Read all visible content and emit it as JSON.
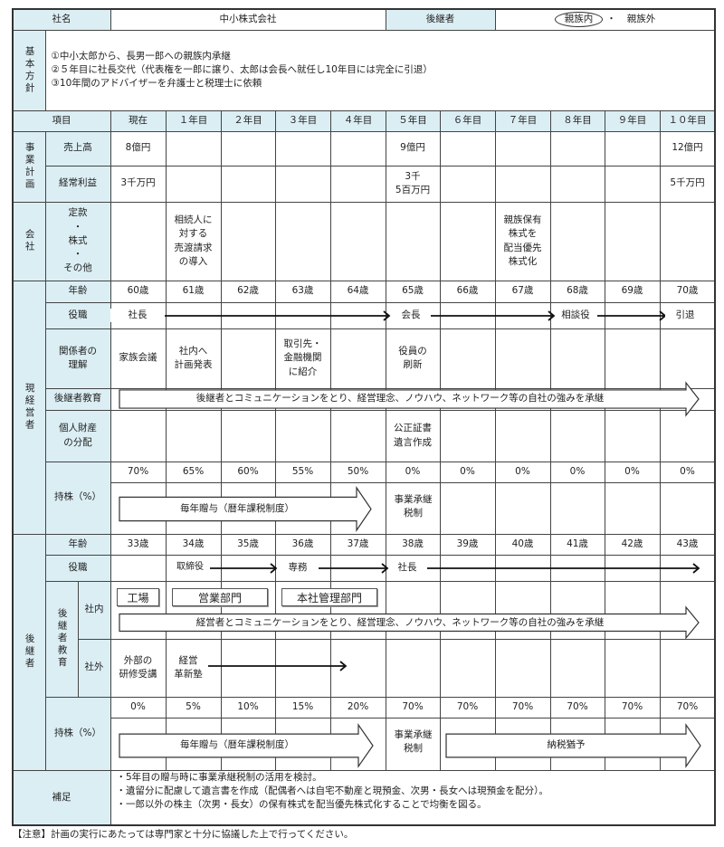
{
  "header": {
    "company_label": "社名",
    "company_name": "中小株式会社",
    "successor_label": "後継者",
    "successor_options": [
      "親族内",
      "親族外"
    ],
    "successor_selected": "親族内",
    "separator": "・"
  },
  "policy": {
    "label": "基本方針",
    "lines": [
      "①中小太郎から、長男一郎への親族内承継",
      "②５年目に社長交代（代表権を一郎に譲り、太郎は会長へ就任し10年目には完全に引退）",
      "③10年間のアドバイザーを弁護士と税理士に依頼"
    ]
  },
  "columns": {
    "item_label": "項目",
    "years": [
      "現在",
      "１年目",
      "２年目",
      "３年目",
      "４年目",
      "５年目",
      "６年目",
      "７年目",
      "８年目",
      "９年目",
      "１０年目"
    ]
  },
  "business_plan": {
    "label": "事業計画",
    "sales_label": "売上高",
    "sales": [
      "8億円",
      "",
      "",
      "",
      "",
      "9億円",
      "",
      "",
      "",
      "",
      "12億円"
    ],
    "profit_label": "経常利益",
    "profit": [
      "3千万円",
      "",
      "",
      "",
      "",
      "3千\n5百万円",
      "",
      "",
      "",
      "",
      "5千万円"
    ]
  },
  "company": {
    "label": "会社",
    "sub_label": "定款\n・\n株式\n・\nその他",
    "values": [
      "",
      "相続人に\n対する\n売渡請求\nの導入",
      "",
      "",
      "",
      "",
      "",
      "親族保有\n株式を\n配当優先\n株式化",
      "",
      "",
      ""
    ]
  },
  "current_manager": {
    "label": "現経営者",
    "age_label": "年齢",
    "ages": [
      "60歳",
      "61歳",
      "62歳",
      "63歳",
      "64歳",
      "65歳",
      "66歳",
      "67歳",
      "68歳",
      "69歳",
      "70歳"
    ],
    "position_label": "役職",
    "positions": [
      "社長",
      "会長",
      "相談役",
      "引退"
    ],
    "stakeholder_label": "関係者の\n理解",
    "stakeholders": [
      "家族会議",
      "社内へ\n計画発表",
      "",
      "取引先・\n金融機関\nに紹介",
      "",
      "役員の\n刷新",
      "",
      "",
      "",
      "",
      ""
    ],
    "education_label": "後継者教育",
    "education_arrow": "後継者とコミュニケーションをとり、経営理念、ノウハウ、ネットワーク等の自社の強みを承継",
    "assets_label": "個人財産\nの分配",
    "assets": [
      "",
      "",
      "",
      "",
      "",
      "公正証書\n遺言作成",
      "",
      "",
      "",
      "",
      ""
    ],
    "shares_label": "持株（%）",
    "shares": [
      "70%",
      "65%",
      "60%",
      "55%",
      "50%",
      "0%",
      "0%",
      "0%",
      "0%",
      "0%",
      "0%"
    ],
    "share_arrow": "毎年贈与（暦年課税制度）",
    "share_note": "事業承継\n税制"
  },
  "successor": {
    "label": "後継者",
    "age_label": "年齢",
    "ages": [
      "33歳",
      "34歳",
      "35歳",
      "36歳",
      "37歳",
      "38歳",
      "39歳",
      "40歳",
      "41歳",
      "42歳",
      "43歳"
    ],
    "position_label": "役職",
    "positions": [
      "取締役",
      "専務",
      "社長"
    ],
    "education_label": "後継者教育",
    "internal_label": "社内",
    "internal_boxes": [
      "工場",
      "営業部門",
      "本社管理部門"
    ],
    "internal_arrow": "経営者とコミュニケーションをとり、経営理念、ノウハウ、ネットワーク等の自社の強みを承継",
    "external_label": "社外",
    "external": [
      "外部の\n研修受講",
      "経営\n革新塾"
    ],
    "shares_label": "持株（%）",
    "shares": [
      "0%",
      "5%",
      "10%",
      "15%",
      "20%",
      "70%",
      "70%",
      "70%",
      "70%",
      "70%",
      "70%"
    ],
    "share_arrow": "毎年贈与（暦年課税制度）",
    "share_note": "事業承継\n税制",
    "deferral_arrow": "納税猶予"
  },
  "supplement": {
    "label": "補足",
    "lines": [
      "・5年目の贈与時に事業承継税制の活用を検討。",
      "・遺留分に配慮して遺言書を作成（配偶者へは自宅不動産と現預金、次男・長女へは現預金を配分）。",
      "・一郎以外の株主（次男・長女）の保有株式を配当優先株式化することで均衡を図る。"
    ]
  },
  "footer_note": "【注意】計画の実行にあたっては専門家と十分に協議した上で行ってください。",
  "colors": {
    "label_bg": "#dbeef4",
    "border": "#444444"
  }
}
